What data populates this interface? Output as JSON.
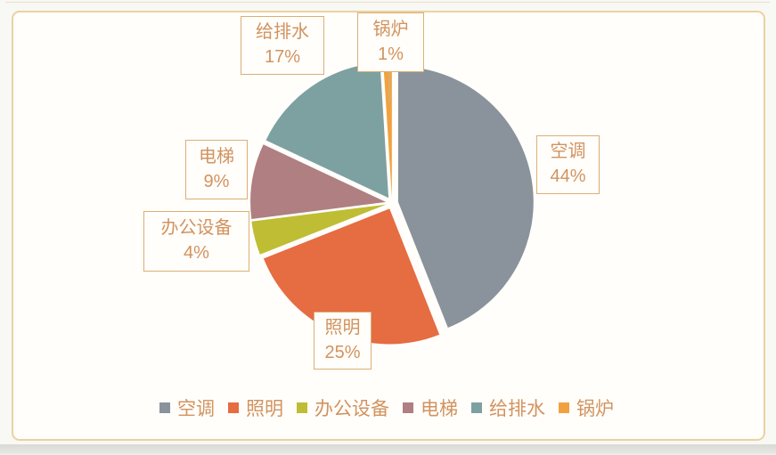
{
  "chart_data": {
    "type": "pie",
    "title": "",
    "categories": [
      "空调",
      "照明",
      "办公设备",
      "电梯",
      "给排水",
      "锅炉"
    ],
    "values": [
      44,
      25,
      4,
      9,
      17,
      1
    ],
    "unit": "%",
    "colors": [
      "#8a939b",
      "#e66c42",
      "#bfbd33",
      "#af7f81",
      "#7ca1a0",
      "#f1a23f"
    ],
    "start_angle_deg": 0,
    "direction": "clockwise",
    "exploded": true,
    "legend_position": "bottom",
    "data_labels": [
      {
        "name": "空调",
        "pct": "44%"
      },
      {
        "name": "照明",
        "pct": "25%"
      },
      {
        "name": "办公设备",
        "pct": "4%"
      },
      {
        "name": "电梯",
        "pct": "9%"
      },
      {
        "name": "给排水",
        "pct": "17%"
      },
      {
        "name": "锅炉",
        "pct": "1%"
      }
    ]
  },
  "legend": {
    "items": [
      {
        "label": "空调",
        "color": "#8a939b"
      },
      {
        "label": "照明",
        "color": "#e66c42"
      },
      {
        "label": "办公设备",
        "color": "#bfbd33"
      },
      {
        "label": "电梯",
        "color": "#af7f81"
      },
      {
        "label": "给排水",
        "color": "#7ca1a0"
      },
      {
        "label": "锅炉",
        "color": "#f1a23f"
      }
    ]
  },
  "colors": {
    "frame_border": "#ebd29e",
    "label_box_border": "#dcaf74",
    "label_text": "#d2935f",
    "chart_background": "#fffefb"
  }
}
